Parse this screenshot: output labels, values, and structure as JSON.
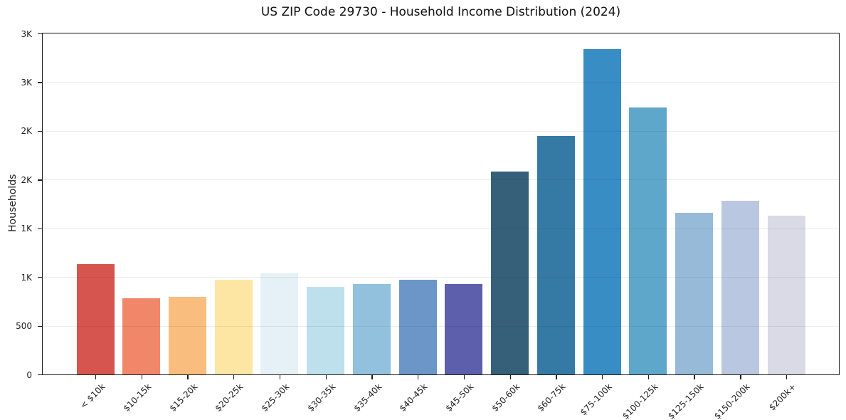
{
  "chart_data": {
    "type": "bar",
    "title": "US ZIP Code 29730 - Household Income Distribution (2024)",
    "xlabel": "",
    "ylabel": "Households",
    "categories": [
      "< $10k",
      "$10-15k",
      "$15-20k",
      "$20-25k",
      "$25-30k",
      "$30-35k",
      "$35-40k",
      "$40-45k",
      "$45-50k",
      "$50-60k",
      "$60-75k",
      "$75-100k",
      "$100-125k",
      "$125-150k",
      "$150-200k",
      "$200k+"
    ],
    "values": [
      1130,
      785,
      800,
      970,
      1040,
      900,
      925,
      975,
      925,
      2085,
      2445,
      3340,
      2740,
      1660,
      1780,
      1630
    ],
    "bar_colors": [
      "#d6554e",
      "#f08769",
      "#f9bd7d",
      "#fde6a3",
      "#e5f1f6",
      "#bedfec",
      "#91c1dd",
      "#6c96c8",
      "#5d5eac",
      "#36607a",
      "#347aa4",
      "#378dc4",
      "#5fa6cb",
      "#96bad8",
      "#b9c8e0",
      "#d9dae6"
    ],
    "ylim": [
      0,
      3500
    ],
    "yticks": [
      {
        "value": 0,
        "label": "0"
      },
      {
        "value": 500,
        "label": "500"
      },
      {
        "value": 1000,
        "label": "1K"
      },
      {
        "value": 1500,
        "label": "1K"
      },
      {
        "value": 2000,
        "label": "2K"
      },
      {
        "value": 2500,
        "label": "2K"
      },
      {
        "value": 3000,
        "label": "3K"
      },
      {
        "value": 3500,
        "label": "3K"
      }
    ],
    "grid": "horizontal",
    "legend": "none",
    "background": "#ffffff",
    "axis_color": "#1c1c1c"
  }
}
